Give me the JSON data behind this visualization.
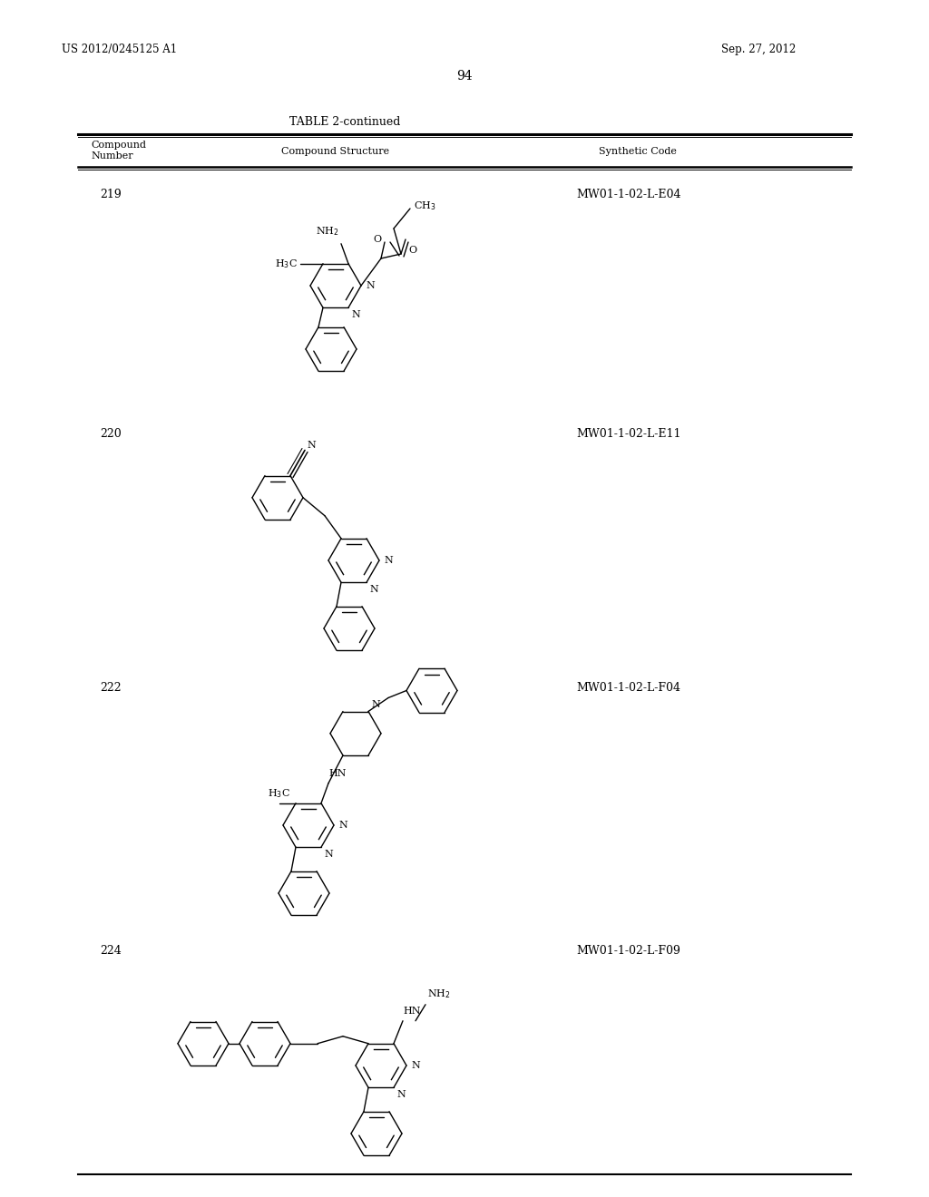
{
  "page_number": "94",
  "patent_number": "US 2012/0245125 A1",
  "patent_date": "Sep. 27, 2012",
  "table_title": "TABLE 2-continued",
  "compounds": [
    {
      "number": "219",
      "code": "MW01-1-02-L-E04"
    },
    {
      "number": "220",
      "code": "MW01-1-02-L-E11"
    },
    {
      "number": "222",
      "code": "MW01-1-02-L-F04"
    },
    {
      "number": "224",
      "code": "MW01-1-02-L-F09"
    }
  ],
  "background_color": "#ffffff",
  "line_color": "#000000"
}
